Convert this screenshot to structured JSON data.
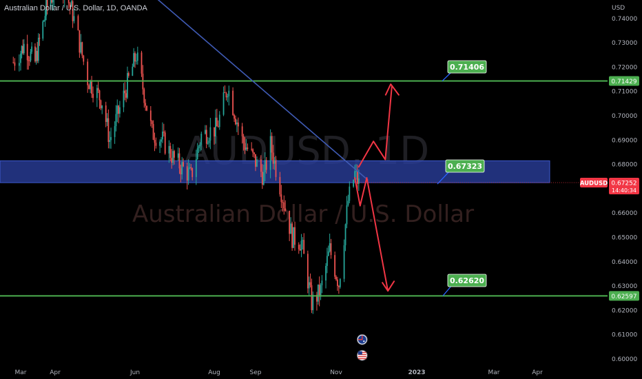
{
  "header": {
    "symbol_title": "Australian Dollar / U.S. Dollar, 1D, OANDA"
  },
  "watermark": {
    "ticker": "AUDUSD, 1D",
    "name": "Australian Dollar / U.S. Dollar"
  },
  "colors": {
    "background": "#000000",
    "up_candle": "#26a69a",
    "down_candle": "#ef5350",
    "level_line": "#4caf50",
    "trend_line": "#3f5bb5",
    "zone_fill": "#2a3f9e",
    "arrow": "#f23645",
    "price_tag": "#f23645"
  },
  "chart_data": {
    "type": "candlestick",
    "currency_label": "USD",
    "y_axis": {
      "ylim": [
        0.5985,
        0.7495
      ],
      "ticks": [
        "0.74000",
        "0.73000",
        "0.72000",
        "0.71000",
        "0.70000",
        "0.69000",
        "0.68000",
        "0.67000",
        "0.66000",
        "0.65000",
        "0.64000",
        "0.63000",
        "0.62000",
        "0.61000",
        "0.60000"
      ]
    },
    "x_axis": {
      "ticks": [
        "Mar",
        "Apr",
        "Jun",
        "Aug",
        "Sep",
        "Nov",
        "2023",
        "Mar",
        "Apr"
      ]
    },
    "close_path": [
      {
        "date": "2022-02-24",
        "close": 0.722
      },
      {
        "date": "2022-03-04",
        "close": 0.729
      },
      {
        "date": "2022-03-14",
        "close": 0.722
      },
      {
        "date": "2022-03-24",
        "close": 0.744
      },
      {
        "date": "2022-04-05",
        "close": 0.756
      },
      {
        "date": "2022-04-14",
        "close": 0.742
      },
      {
        "date": "2022-04-25",
        "close": 0.715
      },
      {
        "date": "2022-05-06",
        "close": 0.706
      },
      {
        "date": "2022-05-12",
        "close": 0.69
      },
      {
        "date": "2022-05-20",
        "close": 0.703
      },
      {
        "date": "2022-06-02",
        "close": 0.725
      },
      {
        "date": "2022-06-14",
        "close": 0.693
      },
      {
        "date": "2022-06-22",
        "close": 0.69
      },
      {
        "date": "2022-07-01",
        "close": 0.682
      },
      {
        "date": "2022-07-14",
        "close": 0.675
      },
      {
        "date": "2022-07-22",
        "close": 0.692
      },
      {
        "date": "2022-08-03",
        "close": 0.695
      },
      {
        "date": "2022-08-11",
        "close": 0.712
      },
      {
        "date": "2022-08-22",
        "close": 0.69
      },
      {
        "date": "2022-09-01",
        "close": 0.681
      },
      {
        "date": "2022-09-07",
        "close": 0.675
      },
      {
        "date": "2022-09-12",
        "close": 0.688
      },
      {
        "date": "2022-09-20",
        "close": 0.669
      },
      {
        "date": "2022-09-28",
        "close": 0.65
      },
      {
        "date": "2022-10-05",
        "close": 0.648
      },
      {
        "date": "2022-10-13",
        "close": 0.623
      },
      {
        "date": "2022-10-20",
        "close": 0.628
      },
      {
        "date": "2022-10-27",
        "close": 0.645
      },
      {
        "date": "2022-11-03",
        "close": 0.631
      },
      {
        "date": "2022-11-10",
        "close": 0.665
      },
      {
        "date": "2022-11-15",
        "close": 0.676
      },
      {
        "date": "2022-11-18",
        "close": 0.672
      }
    ],
    "horizontal_levels": [
      {
        "price": 0.71429,
        "price_label": "0.71429",
        "callout": "0.71406"
      },
      {
        "price": 0.62597,
        "price_label": "0.62597",
        "callout": "0.62620"
      }
    ],
    "zone": {
      "top": 0.6815,
      "bottom": 0.6725,
      "callout": "0.67323"
    },
    "trend_line": {
      "start": {
        "date": "2022-06-05",
        "price": 0.754
      },
      "end": {
        "date": "2022-11-25",
        "price": 0.6735
      }
    },
    "last_price": {
      "symbol": "AUDUSD",
      "price": 0.67252,
      "price_label": "0.67252",
      "countdown": "14:40:34"
    },
    "arrow_up": {
      "points": [
        {
          "date": "2022-11-18",
          "price": 0.679
        },
        {
          "date": "2022-11-29",
          "price": 0.6895
        },
        {
          "date": "2022-12-08",
          "price": 0.682
        },
        {
          "date": "2022-12-13",
          "price": 0.712
        }
      ],
      "head_at": {
        "date": "2022-12-09",
        "price": 0.713
      }
    },
    "arrow_down": {
      "points": [
        {
          "date": "2022-11-15",
          "price": 0.6745
        },
        {
          "date": "2022-11-19",
          "price": 0.663
        },
        {
          "date": "2022-11-24",
          "price": 0.6745
        },
        {
          "date": "2022-12-10",
          "price": 0.628
        }
      ]
    },
    "event_badges": [
      {
        "icon": "australia-flag-icon",
        "date": "2022-11-19",
        "price": 0.608
      },
      {
        "icon": "us-flag-icon",
        "date": "2022-11-19",
        "price": 0.6015
      }
    ]
  }
}
